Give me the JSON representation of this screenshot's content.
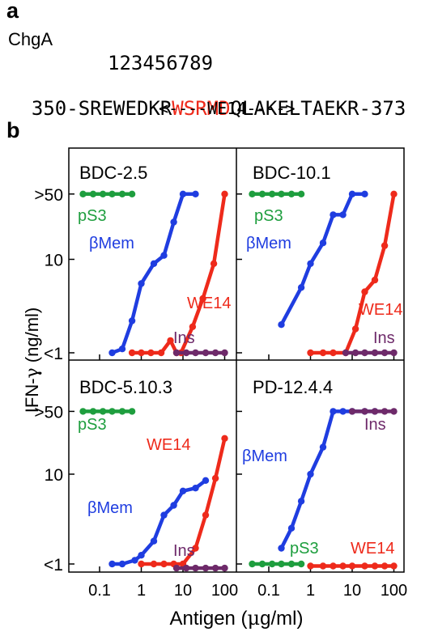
{
  "panel_a": {
    "letter": "a",
    "protein": "ChgA",
    "positions": "123456789",
    "seq_prefix": "350-SREWEDKR",
    "seq_highlight": "WSRMD",
    "seq_suffix": "QLAKELTAEKR-373",
    "peptide_arrow": "<----WE14---->"
  },
  "panel_b": {
    "letter": "b"
  },
  "colors": {
    "pS3": "#1e9e3e",
    "βMem": "#1f3de0",
    "WE14": "#ee2a1b",
    "Ins": "#6e2a6a"
  },
  "chart_data": [
    {
      "type": "line",
      "title": "BDC-2.5",
      "xlabel": "Antigen (μg/ml)",
      "ylabel": "IFN-γ (ng/ml)",
      "x_scale": "log",
      "y_scale": "log",
      "xlim": [
        0.03,
        300
      ],
      "ylim": [
        0.8,
        200
      ],
      "x_ticks": [
        "0.1",
        "1",
        "10",
        "100"
      ],
      "y_ticks": [
        "<1",
        "10",
        ">50"
      ],
      "series": [
        {
          "name": "pS3",
          "x": [
            0.04,
            0.07,
            0.12,
            0.2,
            0.35,
            0.6
          ],
          "y": [
            50,
            50,
            50,
            50,
            50,
            50
          ]
        },
        {
          "name": "βMem",
          "x": [
            0.2,
            0.35,
            0.6,
            1,
            2,
            3.5,
            6,
            10,
            20
          ],
          "y": [
            1,
            1.1,
            2.2,
            5.5,
            9,
            11,
            25,
            50,
            50
          ]
        },
        {
          "name": "WE14",
          "x": [
            0.6,
            1,
            1.7,
            3,
            5,
            7,
            9,
            17,
            30,
            55,
            100
          ],
          "y": [
            1,
            1,
            1,
            1,
            1.35,
            1,
            1,
            1.9,
            3.8,
            9,
            50
          ]
        },
        {
          "name": "Ins",
          "x": [
            7,
            12,
            20,
            35,
            60,
            100
          ],
          "y": [
            1,
            1,
            1,
            1,
            1,
            1
          ]
        }
      ],
      "annotations": [
        "pS3",
        "βMem",
        "WE14",
        "Ins"
      ]
    },
    {
      "type": "line",
      "title": "BDC-10.1",
      "x_scale": "log",
      "y_scale": "log",
      "series": [
        {
          "name": "pS3",
          "x": [
            0.04,
            0.07,
            0.12,
            0.2,
            0.35,
            0.6
          ],
          "y": [
            50,
            50,
            50,
            50,
            50,
            50
          ]
        },
        {
          "name": "βMem",
          "x": [
            0.2,
            0.6,
            1,
            2,
            3.5,
            6,
            10,
            20
          ],
          "y": [
            2,
            5,
            9,
            15,
            30,
            30,
            50,
            50
          ]
        },
        {
          "name": "WE14",
          "x": [
            1,
            2,
            3.5,
            7,
            12,
            20,
            35,
            60,
            100
          ],
          "y": [
            1,
            1,
            1,
            1,
            1.8,
            4.5,
            6,
            14,
            50
          ]
        },
        {
          "name": "Ins",
          "x": [
            7,
            12,
            20,
            35,
            60,
            100
          ],
          "y": [
            1,
            1,
            1,
            1,
            1,
            1
          ]
        }
      ],
      "annotations": [
        "pS3",
        "βMem",
        "WE14",
        "Ins"
      ]
    },
    {
      "type": "line",
      "title": "BDC-5.10.3",
      "x_scale": "log",
      "y_scale": "log",
      "series": [
        {
          "name": "pS3",
          "x": [
            0.04,
            0.07,
            0.12,
            0.2,
            0.35,
            0.6
          ],
          "y": [
            50,
            50,
            50,
            50,
            50,
            50
          ]
        },
        {
          "name": "βMem",
          "x": [
            0.2,
            0.35,
            0.7,
            1,
            2,
            3.5,
            6,
            10,
            20,
            35
          ],
          "y": [
            1,
            1,
            1.1,
            1.25,
            1.8,
            3.5,
            4.5,
            6.5,
            7,
            8.5
          ]
        },
        {
          "name": "WE14",
          "x": [
            1,
            2,
            3.5,
            6,
            10,
            20,
            35,
            60,
            100
          ],
          "y": [
            1,
            1,
            1,
            1,
            1,
            1.5,
            3.5,
            9,
            25
          ]
        },
        {
          "name": "Ins",
          "x": [
            7,
            12,
            20,
            35,
            60,
            100
          ],
          "y": [
            0.9,
            0.9,
            0.9,
            0.9,
            0.9,
            0.9
          ]
        }
      ],
      "annotations": [
        "pS3",
        "βMem",
        "WE14",
        "Ins"
      ]
    },
    {
      "type": "line",
      "title": "PD-12.4.4",
      "x_scale": "log",
      "y_scale": "log",
      "series": [
        {
          "name": "βMem",
          "x": [
            0.2,
            0.35,
            0.6,
            1,
            2,
            3.5,
            6,
            10,
            20,
            35
          ],
          "y": [
            1.5,
            2.5,
            5,
            10,
            20,
            50,
            50,
            50,
            50,
            50
          ]
        },
        {
          "name": "Ins",
          "x": [
            10,
            20,
            35,
            60,
            100
          ],
          "y": [
            50,
            50,
            50,
            50,
            50
          ]
        },
        {
          "name": "pS3",
          "x": [
            0.04,
            0.07,
            0.12,
            0.2,
            0.35,
            0.6
          ],
          "y": [
            1,
            1,
            1,
            1,
            1,
            1
          ]
        },
        {
          "name": "WE14",
          "x": [
            1,
            2,
            3.5,
            6,
            10,
            20,
            35,
            60,
            100
          ],
          "y": [
            0.95,
            0.95,
            0.95,
            0.95,
            0.95,
            0.95,
            0.95,
            0.95,
            0.95
          ]
        }
      ],
      "annotations": [
        "pS3",
        "βMem",
        "WE14",
        "Ins"
      ]
    }
  ],
  "axis": {
    "y_label_prefix": "IFN-",
    "y_label_gamma": "γ",
    "y_label_suffix": " (ng/ml)",
    "x_label_prefix": "Antigen (",
    "x_label_mu": "μ",
    "x_label_suffix": "g/ml)"
  }
}
